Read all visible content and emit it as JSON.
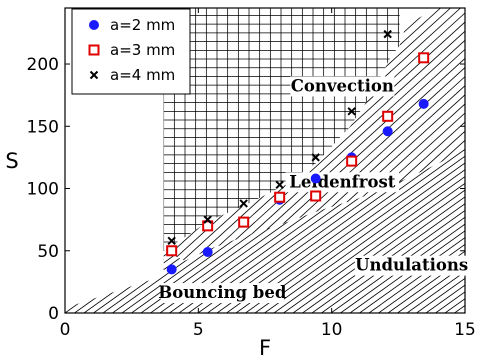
{
  "chart_data": {
    "type": "scatter",
    "xlabel": "F",
    "ylabel": "S",
    "xlim": [
      0,
      15
    ],
    "ylim": [
      0,
      245
    ],
    "x_ticks": [
      "0",
      "5",
      "10",
      "15"
    ],
    "y_ticks": [
      "0",
      "50",
      "100",
      "150",
      "200"
    ],
    "legend_position": "top-left",
    "series": [
      {
        "name": "a=2 mm",
        "marker": "filled-circle",
        "color": "#1a1aff",
        "x": [
          4.0,
          5.35,
          6.7,
          8.05,
          9.4,
          10.75,
          12.1,
          13.45
        ],
        "y": [
          35,
          49,
          73,
          91,
          108,
          125,
          146,
          168
        ]
      },
      {
        "name": "a=3 mm",
        "marker": "open-square",
        "color": "#e00000",
        "x": [
          4.0,
          5.35,
          6.7,
          8.05,
          9.4,
          10.75,
          12.1,
          13.45
        ],
        "y": [
          50,
          70,
          73,
          93,
          94,
          122,
          158,
          205
        ]
      },
      {
        "name": "a=4 mm",
        "marker": "x-cross",
        "color": "#000000",
        "x": [
          4.0,
          5.35,
          6.7,
          8.05,
          9.4,
          10.75,
          12.1
        ],
        "y": [
          58,
          75,
          88,
          103,
          125,
          162,
          224
        ]
      }
    ],
    "regions": [
      {
        "label": "Convection",
        "fill": "grid-hatch",
        "label_x": 10.4,
        "label_y": 178
      },
      {
        "label": "Leidenfrost",
        "fill": "diagonal-hatch",
        "label_x": 10.4,
        "label_y": 101
      },
      {
        "label": "Undulations",
        "fill": "dots",
        "label_x": 13.0,
        "label_y": 34
      },
      {
        "label": "Bouncing bed",
        "fill": "diagonal-hatch",
        "label_x": 5.9,
        "label_y": 12
      }
    ]
  }
}
